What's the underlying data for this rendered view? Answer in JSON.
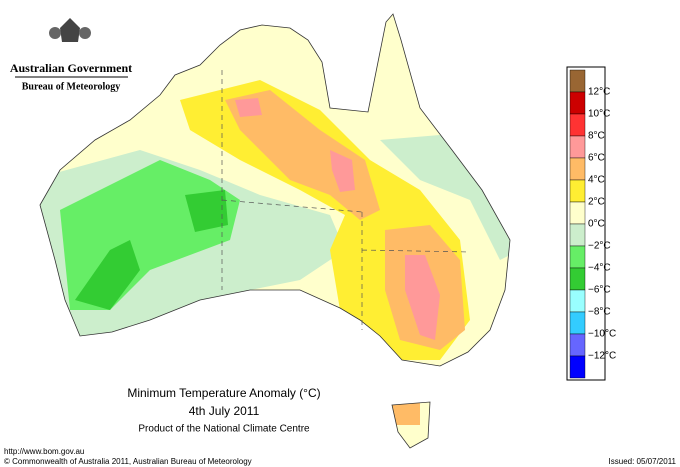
{
  "header": {
    "government": "Australian Government",
    "agency": "Bureau of Meteorology"
  },
  "map": {
    "title": "Minimum Temperature Anomaly (°C)",
    "date": "4th July 2011",
    "product": "Product of the National Climate Centre"
  },
  "legend": {
    "colors": [
      "#996633",
      "#cc0000",
      "#ff3333",
      "#ff9999",
      "#ffbb66",
      "#ffee33",
      "#ffffcc",
      "#cceecc",
      "#66ee66",
      "#33cc33",
      "#99ffff",
      "#33ccff",
      "#6666ff",
      "#0000ff"
    ],
    "labels": [
      "12°C",
      "10°C",
      "8°C",
      "6°C",
      "4°C",
      "2°C",
      "0°C",
      "−2°C",
      "−4°C",
      "−6°C",
      "−8°C",
      "−10°C",
      "−12°C"
    ]
  },
  "footer": {
    "url": "http://www.bom.gov.au",
    "copyright": "© Commonwealth of Australia 2011, Australian Bureau of Meteorology",
    "issued": "Issued: 05/07/2011"
  }
}
